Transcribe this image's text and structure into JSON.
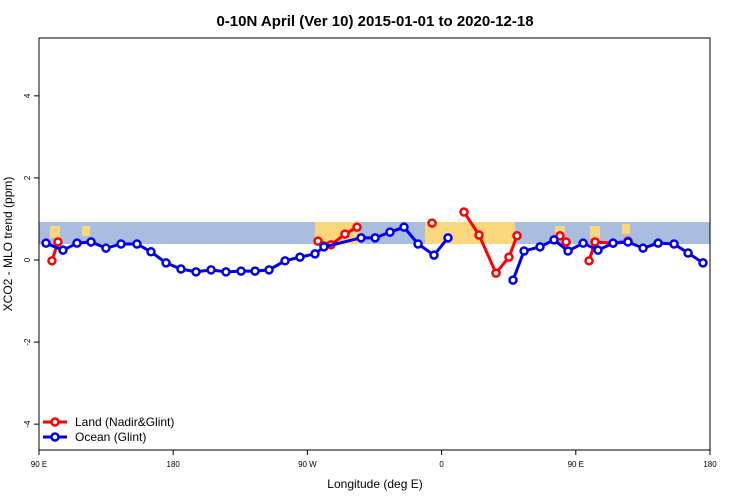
{
  "chart_data": {
    "type": "line",
    "title": "0-10N April (Ver 10)   2015-01-01 to 2020-12-18",
    "x_label": "Longitude (deg E)",
    "y_label": "XCO2 - MLO trend (ppm)",
    "xlim": [
      90,
      540
    ],
    "ylim": [
      -4.63,
      5.41
    ],
    "xticks": [
      {
        "value": 90,
        "label": "90 E"
      },
      {
        "value": 180,
        "label": "180"
      },
      {
        "value": 270,
        "label": "90 W"
      },
      {
        "value": 360,
        "label": "0"
      },
      {
        "value": 450,
        "label": "90 E"
      },
      {
        "value": 540,
        "label": "180"
      }
    ],
    "yticks": [
      -4,
      -2,
      0,
      2,
      4
    ],
    "legend": "bottom-left",
    "series": [
      {
        "name": "Land (Nadir&Glint)",
        "color": "#ff0000",
        "x": [
          98.7,
          102.7,
          null,
          124.9,
          null,
          277.1,
          285.8,
          295.2,
          303.3,
          null,
          353.6,
          null,
          375,
          385.1,
          396.5,
          405.2,
          410.6,
          null,
          439.4,
          443.5,
          null,
          458.9,
          462.9,
          475,
          485
        ],
        "values": [
          -0.02,
          0.44,
          null,
          0.44,
          null,
          0.46,
          0.37,
          0.63,
          0.8,
          null,
          0.9,
          null,
          1.17,
          0.61,
          -0.32,
          0.07,
          0.59,
          null,
          0.59,
          0.44,
          null,
          -0.02,
          0.44,
          0.41,
          0.46
        ]
      },
      {
        "name": "Ocean (Glint)",
        "color": "#0000ee",
        "x": [
          94.7,
          106.1,
          115.5,
          124.9,
          134.9,
          145,
          155.7,
          165.1,
          175.2,
          185.2,
          195.3,
          205.4,
          215.4,
          225.5,
          234.9,
          244.3,
          255,
          265,
          275.1,
          281.1,
          306,
          315.4,
          325.4,
          334.8,
          344.2,
          354.9,
          364.3,
          null,
          407.9,
          415.3,
          426,
          435.4,
          444.8,
          454.9,
          464.9,
          475,
          485,
          495.1,
          505.2,
          515.9,
          525.3,
          535.3
        ],
        "values": [
          0.41,
          0.24,
          0.41,
          0.44,
          0.29,
          0.39,
          0.39,
          0.2,
          -0.07,
          -0.22,
          -0.29,
          -0.24,
          -0.29,
          -0.27,
          -0.27,
          -0.24,
          -0.02,
          0.07,
          0.15,
          0.32,
          0.54,
          0.54,
          0.68,
          0.8,
          0.39,
          0.12,
          0.54,
          null,
          -0.49,
          0.22,
          0.32,
          0.49,
          0.22,
          0.41,
          0.24,
          0.41,
          0.44,
          0.29,
          0.41,
          0.39,
          0.17,
          -0.07
        ]
      }
    ]
  }
}
